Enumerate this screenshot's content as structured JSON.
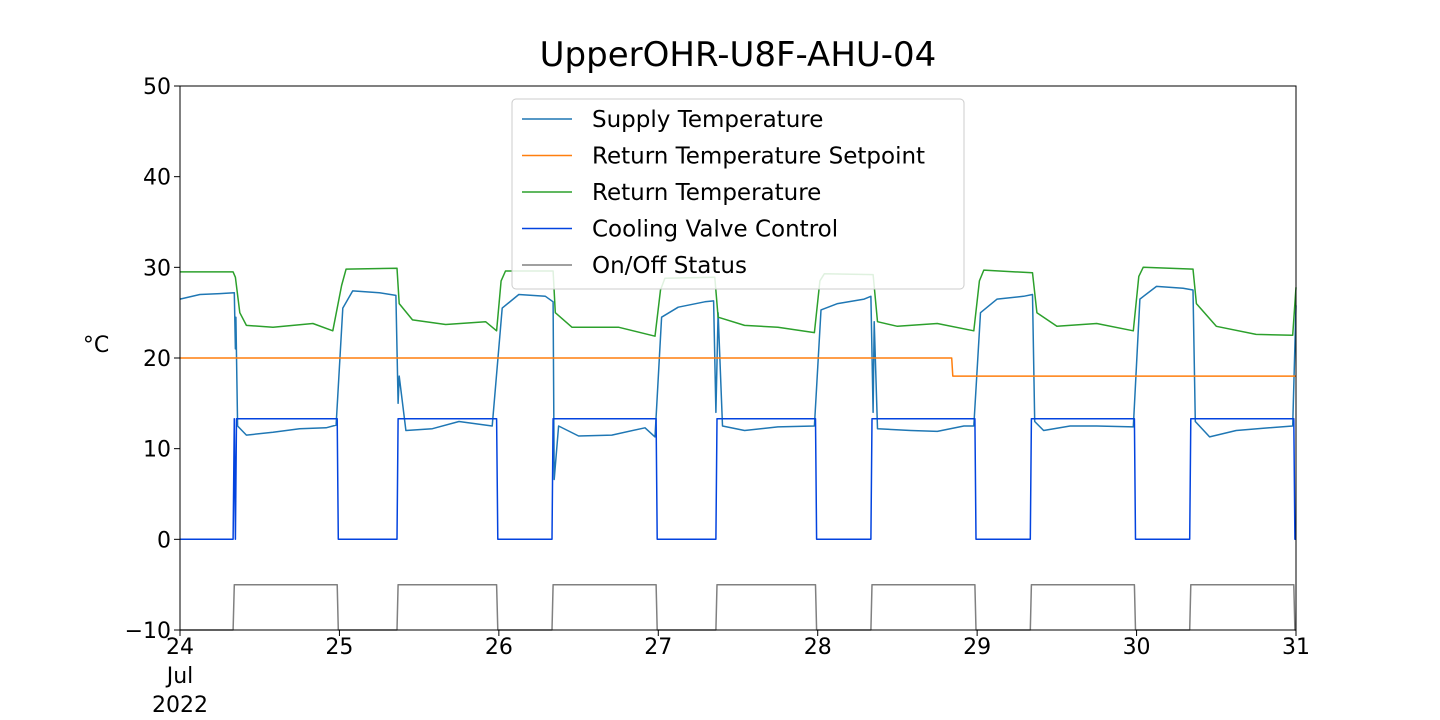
{
  "chart_data": {
    "type": "line",
    "title": "UpperOHR-U8F-AHU-04",
    "ylabel": "°C",
    "xlabel": "",
    "ylim": [
      -10,
      50
    ],
    "xlim": [
      "2022-07-24",
      "2022-07-31"
    ],
    "yticks": [
      "−10",
      "0",
      "10",
      "20",
      "30",
      "40",
      "50"
    ],
    "yticks_values": [
      -10,
      0,
      10,
      20,
      30,
      40,
      50
    ],
    "xticks": [
      {
        "date": "2022-07-24",
        "label": "24",
        "sub1": "Jul",
        "sub2": "2022"
      },
      {
        "date": "2022-07-25",
        "label": "25"
      },
      {
        "date": "2022-07-26",
        "label": "26"
      },
      {
        "date": "2022-07-27",
        "label": "27"
      },
      {
        "date": "2022-07-28",
        "label": "28"
      },
      {
        "date": "2022-07-29",
        "label": "29"
      },
      {
        "date": "2022-07-30",
        "label": "30"
      },
      {
        "date": "2022-07-31",
        "label": "31"
      }
    ],
    "grid": false,
    "legend_position": "top-center",
    "series": [
      {
        "name": "Supply Temperature",
        "color": "#1f77b4",
        "points": [
          [
            "2022-07-24 00:00",
            26.5
          ],
          [
            "2022-07-24 03:00",
            27.0
          ],
          [
            "2022-07-24 06:00",
            27.1
          ],
          [
            "2022-07-24 08:10",
            27.2
          ],
          [
            "2022-07-24 08:20",
            21.0
          ],
          [
            "2022-07-24 08:25",
            24.5
          ],
          [
            "2022-07-24 08:40",
            12.5
          ],
          [
            "2022-07-24 10:00",
            11.5
          ],
          [
            "2022-07-24 14:00",
            11.8
          ],
          [
            "2022-07-24 18:00",
            12.2
          ],
          [
            "2022-07-24 22:00",
            12.3
          ],
          [
            "2022-07-24 23:30",
            12.6
          ],
          [
            "2022-07-25 00:30",
            25.5
          ],
          [
            "2022-07-25 02:00",
            27.4
          ],
          [
            "2022-07-25 06:00",
            27.2
          ],
          [
            "2022-07-25 08:30",
            26.9
          ],
          [
            "2022-07-25 08:50",
            15.0
          ],
          [
            "2022-07-25 09:00",
            18.0
          ],
          [
            "2022-07-25 10:00",
            12.0
          ],
          [
            "2022-07-25 14:00",
            12.2
          ],
          [
            "2022-07-25 18:00",
            13.0
          ],
          [
            "2022-07-25 23:00",
            12.5
          ],
          [
            "2022-07-26 00:30",
            25.5
          ],
          [
            "2022-07-26 03:00",
            27.0
          ],
          [
            "2022-07-26 07:00",
            26.8
          ],
          [
            "2022-07-26 08:10",
            26.2
          ],
          [
            "2022-07-26 08:20",
            6.6
          ],
          [
            "2022-07-26 09:00",
            12.5
          ],
          [
            "2022-07-26 12:00",
            11.4
          ],
          [
            "2022-07-26 17:00",
            11.5
          ],
          [
            "2022-07-26 22:00",
            12.3
          ],
          [
            "2022-07-26 23:30",
            11.3
          ],
          [
            "2022-07-27 00:30",
            24.5
          ],
          [
            "2022-07-27 03:00",
            25.6
          ],
          [
            "2022-07-27 07:00",
            26.2
          ],
          [
            "2022-07-27 08:20",
            26.3
          ],
          [
            "2022-07-27 08:40",
            14.0
          ],
          [
            "2022-07-27 09:00",
            25.0
          ],
          [
            "2022-07-27 09:40",
            12.5
          ],
          [
            "2022-07-27 13:00",
            12.0
          ],
          [
            "2022-07-27 18:00",
            12.4
          ],
          [
            "2022-07-27 23:30",
            12.5
          ],
          [
            "2022-07-28 00:30",
            25.3
          ],
          [
            "2022-07-28 03:00",
            26.0
          ],
          [
            "2022-07-28 07:00",
            26.5
          ],
          [
            "2022-07-28 08:00",
            26.8
          ],
          [
            "2022-07-28 08:20",
            14.0
          ],
          [
            "2022-07-28 08:30",
            24.0
          ],
          [
            "2022-07-28 09:00",
            12.2
          ],
          [
            "2022-07-28 14:00",
            12.0
          ],
          [
            "2022-07-28 18:00",
            11.9
          ],
          [
            "2022-07-28 22:00",
            12.5
          ],
          [
            "2022-07-28 23:30",
            12.5
          ],
          [
            "2022-07-29 00:30",
            25.0
          ],
          [
            "2022-07-29 03:00",
            26.5
          ],
          [
            "2022-07-29 07:00",
            26.8
          ],
          [
            "2022-07-29 08:20",
            27.0
          ],
          [
            "2022-07-29 08:40",
            13.0
          ],
          [
            "2022-07-29 10:00",
            12.0
          ],
          [
            "2022-07-29 14:00",
            12.5
          ],
          [
            "2022-07-29 18:00",
            12.5
          ],
          [
            "2022-07-29 23:30",
            12.4
          ],
          [
            "2022-07-30 00:30",
            26.5
          ],
          [
            "2022-07-30 03:00",
            27.9
          ],
          [
            "2022-07-30 07:00",
            27.7
          ],
          [
            "2022-07-30 08:30",
            27.5
          ],
          [
            "2022-07-30 08:50",
            13.0
          ],
          [
            "2022-07-30 11:00",
            11.3
          ],
          [
            "2022-07-30 15:00",
            12.0
          ],
          [
            "2022-07-30 20:00",
            12.3
          ],
          [
            "2022-07-30 23:30",
            12.5
          ],
          [
            "2022-07-31 00:00",
            25.8
          ]
        ]
      },
      {
        "name": "Return Temperature Setpoint",
        "color": "#ff7f0e",
        "points": [
          [
            "2022-07-24 00:00",
            20.0
          ],
          [
            "2022-07-28 20:10",
            20.0
          ],
          [
            "2022-07-28 20:20",
            18.0
          ],
          [
            "2022-07-31 00:00",
            18.0
          ]
        ]
      },
      {
        "name": "Return Temperature",
        "color": "#2ca02c",
        "points": [
          [
            "2022-07-24 00:00",
            29.5
          ],
          [
            "2022-07-24 08:00",
            29.5
          ],
          [
            "2022-07-24 08:20",
            28.9
          ],
          [
            "2022-07-24 09:00",
            25.0
          ],
          [
            "2022-07-24 10:00",
            23.6
          ],
          [
            "2022-07-24 14:00",
            23.4
          ],
          [
            "2022-07-24 20:00",
            23.8
          ],
          [
            "2022-07-24 23:00",
            23.0
          ],
          [
            "2022-07-25 00:20",
            28.0
          ],
          [
            "2022-07-25 01:00",
            29.8
          ],
          [
            "2022-07-25 08:40",
            29.9
          ],
          [
            "2022-07-25 09:00",
            26.0
          ],
          [
            "2022-07-25 11:00",
            24.2
          ],
          [
            "2022-07-25 16:00",
            23.7
          ],
          [
            "2022-07-25 22:00",
            24.0
          ],
          [
            "2022-07-25 23:40",
            23.0
          ],
          [
            "2022-07-26 00:20",
            28.5
          ],
          [
            "2022-07-26 01:00",
            29.6
          ],
          [
            "2022-07-26 08:10",
            29.6
          ],
          [
            "2022-07-26 08:30",
            25.0
          ],
          [
            "2022-07-26 11:00",
            23.4
          ],
          [
            "2022-07-26 18:00",
            23.4
          ],
          [
            "2022-07-26 23:30",
            22.4
          ],
          [
            "2022-07-27 00:20",
            27.5
          ],
          [
            "2022-07-27 01:00",
            28.8
          ],
          [
            "2022-07-27 08:30",
            28.9
          ],
          [
            "2022-07-27 09:00",
            24.5
          ],
          [
            "2022-07-27 13:00",
            23.6
          ],
          [
            "2022-07-27 18:00",
            23.4
          ],
          [
            "2022-07-27 23:30",
            22.8
          ],
          [
            "2022-07-28 00:20",
            28.5
          ],
          [
            "2022-07-28 01:00",
            29.3
          ],
          [
            "2022-07-28 08:20",
            29.2
          ],
          [
            "2022-07-28 09:00",
            24.0
          ],
          [
            "2022-07-28 12:00",
            23.5
          ],
          [
            "2022-07-28 18:00",
            23.8
          ],
          [
            "2022-07-28 23:30",
            23.0
          ],
          [
            "2022-07-29 00:20",
            28.5
          ],
          [
            "2022-07-29 01:00",
            29.7
          ],
          [
            "2022-07-29 08:20",
            29.4
          ],
          [
            "2022-07-29 09:00",
            25.0
          ],
          [
            "2022-07-29 12:00",
            23.5
          ],
          [
            "2022-07-29 18:00",
            23.8
          ],
          [
            "2022-07-29 23:30",
            23.0
          ],
          [
            "2022-07-30 00:20",
            29.0
          ],
          [
            "2022-07-30 01:00",
            30.0
          ],
          [
            "2022-07-30 08:30",
            29.8
          ],
          [
            "2022-07-30 09:00",
            26.0
          ],
          [
            "2022-07-30 12:00",
            23.5
          ],
          [
            "2022-07-30 18:00",
            22.6
          ],
          [
            "2022-07-30 23:30",
            22.5
          ],
          [
            "2022-07-31 00:00",
            27.8
          ]
        ]
      },
      {
        "name": "Cooling Valve Control",
        "color": "#0343df",
        "points": [
          [
            "2022-07-24 00:00",
            0
          ],
          [
            "2022-07-24 08:00",
            0
          ],
          [
            "2022-07-24 08:10",
            13.3
          ],
          [
            "2022-07-24 08:20",
            0
          ],
          [
            "2022-07-24 08:30",
            13.3
          ],
          [
            "2022-07-24 23:40",
            13.3
          ],
          [
            "2022-07-24 23:50",
            0
          ],
          [
            "2022-07-25 08:40",
            0
          ],
          [
            "2022-07-25 08:50",
            13.3
          ],
          [
            "2022-07-25 23:40",
            13.3
          ],
          [
            "2022-07-25 23:50",
            0
          ],
          [
            "2022-07-26 08:00",
            0
          ],
          [
            "2022-07-26 08:10",
            13.3
          ],
          [
            "2022-07-26 23:40",
            13.3
          ],
          [
            "2022-07-26 23:50",
            0
          ],
          [
            "2022-07-27 08:40",
            0
          ],
          [
            "2022-07-27 08:50",
            13.3
          ],
          [
            "2022-07-27 23:40",
            13.3
          ],
          [
            "2022-07-27 23:50",
            0
          ],
          [
            "2022-07-28 08:00",
            0
          ],
          [
            "2022-07-28 08:10",
            13.3
          ],
          [
            "2022-07-28 23:40",
            13.3
          ],
          [
            "2022-07-28 23:50",
            0
          ],
          [
            "2022-07-29 08:00",
            0
          ],
          [
            "2022-07-29 08:10",
            13.3
          ],
          [
            "2022-07-29 23:40",
            13.3
          ],
          [
            "2022-07-29 23:50",
            0
          ],
          [
            "2022-07-30 08:00",
            0
          ],
          [
            "2022-07-30 08:10",
            13.3
          ],
          [
            "2022-07-30 23:40",
            13.3
          ],
          [
            "2022-07-30 23:50",
            0
          ],
          [
            "2022-07-31 00:00",
            0
          ]
        ]
      },
      {
        "name": "On/Off Status",
        "color": "#808080",
        "points": [
          [
            "2022-07-24 00:00",
            -10
          ],
          [
            "2022-07-24 08:00",
            -10
          ],
          [
            "2022-07-24 08:10",
            -5
          ],
          [
            "2022-07-24 23:40",
            -5
          ],
          [
            "2022-07-24 23:50",
            -10
          ],
          [
            "2022-07-25 08:40",
            -10
          ],
          [
            "2022-07-25 08:50",
            -5
          ],
          [
            "2022-07-25 23:40",
            -5
          ],
          [
            "2022-07-25 23:50",
            -10
          ],
          [
            "2022-07-26 08:00",
            -10
          ],
          [
            "2022-07-26 08:10",
            -5
          ],
          [
            "2022-07-26 23:40",
            -5
          ],
          [
            "2022-07-26 23:50",
            -10
          ],
          [
            "2022-07-27 08:40",
            -10
          ],
          [
            "2022-07-27 08:50",
            -5
          ],
          [
            "2022-07-27 23:40",
            -5
          ],
          [
            "2022-07-27 23:50",
            -10
          ],
          [
            "2022-07-28 08:00",
            -10
          ],
          [
            "2022-07-28 08:10",
            -5
          ],
          [
            "2022-07-28 23:40",
            -5
          ],
          [
            "2022-07-28 23:50",
            -10
          ],
          [
            "2022-07-29 08:00",
            -10
          ],
          [
            "2022-07-29 08:10",
            -5
          ],
          [
            "2022-07-29 23:40",
            -5
          ],
          [
            "2022-07-29 23:50",
            -10
          ],
          [
            "2022-07-30 08:00",
            -10
          ],
          [
            "2022-07-30 08:10",
            -5
          ],
          [
            "2022-07-30 23:40",
            -5
          ],
          [
            "2022-07-30 23:50",
            -10
          ],
          [
            "2022-07-31 00:00",
            -10
          ]
        ]
      }
    ]
  }
}
